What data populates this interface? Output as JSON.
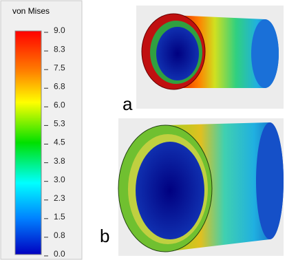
{
  "colorbar": {
    "title": "von Mises",
    "ticks": [
      "9.0",
      "8.3",
      "7.5",
      "6.8",
      "6.0",
      "5.3",
      "4.5",
      "3.8",
      "3.0",
      "2.3",
      "1.5",
      "0.8",
      "0.0"
    ]
  },
  "panels": [
    {
      "label": "a"
    },
    {
      "label": "b"
    }
  ]
}
